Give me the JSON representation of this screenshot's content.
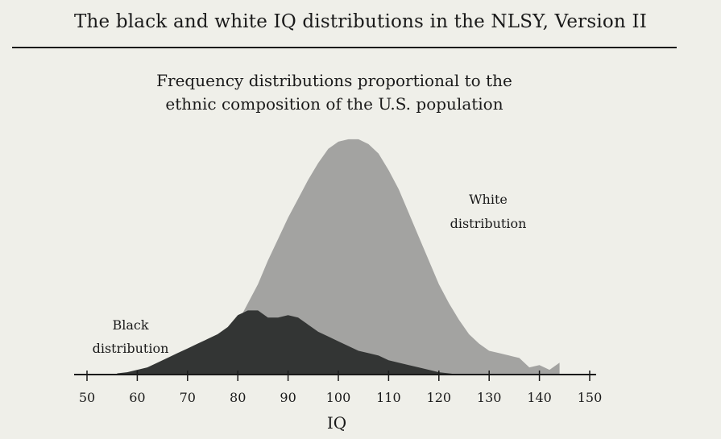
{
  "header": {
    "title": "The black and white IQ distributions in the NLSY, Version II"
  },
  "chart_data": {
    "type": "area",
    "title": "",
    "subtitle_line1": "Frequency distributions proportional to the",
    "subtitle_line2": "ethnic composition of the U.S. population",
    "xlabel": "IQ",
    "ylabel": "",
    "xlim": [
      48,
      152
    ],
    "ylim": [
      0,
      100
    ],
    "xticks": [
      50,
      60,
      70,
      80,
      90,
      100,
      110,
      120,
      130,
      140,
      150
    ],
    "grid": false,
    "series": [
      {
        "name": "White distribution",
        "label_line1": "White",
        "label_line2": "distribution",
        "color": "#a3a3a1",
        "x": [
          70,
          72,
          74,
          76,
          78,
          80,
          82,
          84,
          86,
          88,
          90,
          92,
          94,
          96,
          98,
          100,
          102,
          104,
          106,
          108,
          110,
          112,
          114,
          116,
          118,
          120,
          122,
          124,
          126,
          128,
          130,
          132,
          134,
          136,
          138,
          140,
          142,
          144
        ],
        "y": [
          4,
          7,
          10,
          13,
          17,
          22,
          30,
          38,
          48,
          57,
          66,
          74,
          82,
          89,
          95,
          98,
          99,
          99,
          97,
          93,
          86,
          78,
          68,
          58,
          48,
          38,
          30,
          23,
          17,
          13,
          10,
          9,
          8,
          7,
          3,
          4,
          2,
          5
        ]
      },
      {
        "name": "Black distribution",
        "label_line1": "Black",
        "label_line2": "distribution",
        "color": "#333534",
        "x": [
          56,
          58,
          60,
          62,
          64,
          66,
          68,
          70,
          72,
          74,
          76,
          78,
          80,
          82,
          84,
          86,
          88,
          90,
          92,
          94,
          96,
          98,
          100,
          102,
          104,
          106,
          108,
          110,
          112,
          114,
          116,
          118,
          120,
          122,
          124
        ],
        "y": [
          0.5,
          1,
          2,
          3,
          5,
          7,
          9,
          11,
          13,
          15,
          17,
          20,
          25,
          27,
          27,
          24,
          24,
          25,
          24,
          21,
          18,
          16,
          14,
          12,
          10,
          9,
          8,
          6,
          5,
          4,
          3,
          2,
          1,
          0.5,
          0
        ]
      }
    ]
  }
}
